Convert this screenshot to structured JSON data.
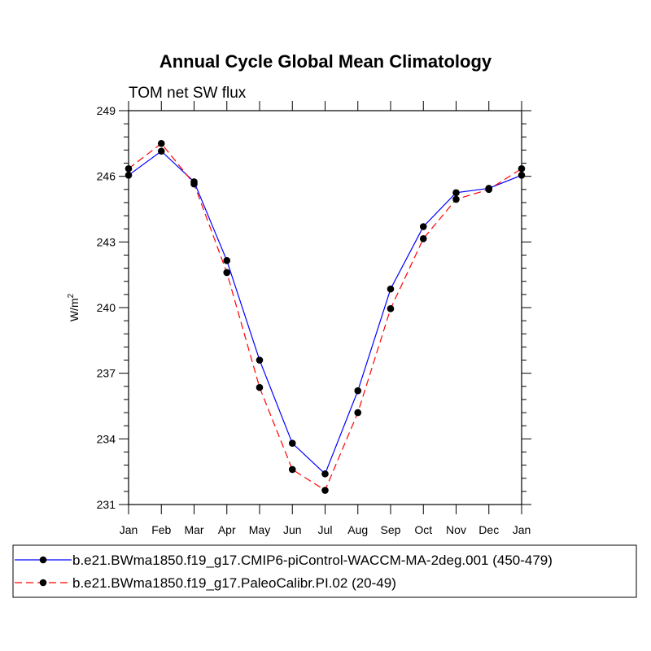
{
  "chart_data": {
    "type": "line",
    "title": "Annual Cycle Global Mean Climatology",
    "subtitle": "TOM net SW flux",
    "xlabel": "",
    "ylabel": "W/m",
    "ylabel_sup": "2",
    "categories": [
      "Jan",
      "Feb",
      "Mar",
      "Apr",
      "May",
      "Jun",
      "Jul",
      "Aug",
      "Sep",
      "Oct",
      "Nov",
      "Dec",
      "Jan"
    ],
    "ylim": [
      231,
      249
    ],
    "yticks": [
      231,
      234,
      237,
      240,
      243,
      246,
      249
    ],
    "yticks_labels": [
      "231",
      "234",
      "237",
      "240",
      "243",
      "246",
      "249"
    ],
    "grid": false,
    "legend_position": "bottom",
    "series": [
      {
        "name": "b.e21.BWma1850.f19_g17.CMIP6-piControl-WACCM-MA-2deg.001 (450-479)",
        "color": "#0000ff",
        "style": "solid",
        "values": [
          246.05,
          247.15,
          245.75,
          242.15,
          237.6,
          233.8,
          232.4,
          236.2,
          240.85,
          243.7,
          245.25,
          245.45,
          246.05
        ]
      },
      {
        "name": "b.e21.BWma1850.f19_g17.PaleoCalibr.PI.02 (20-49)",
        "color": "#ff0000",
        "style": "dashed",
        "values": [
          246.35,
          247.5,
          245.65,
          241.6,
          236.35,
          232.6,
          231.65,
          235.2,
          239.95,
          243.15,
          244.95,
          245.4,
          246.35
        ]
      }
    ]
  }
}
